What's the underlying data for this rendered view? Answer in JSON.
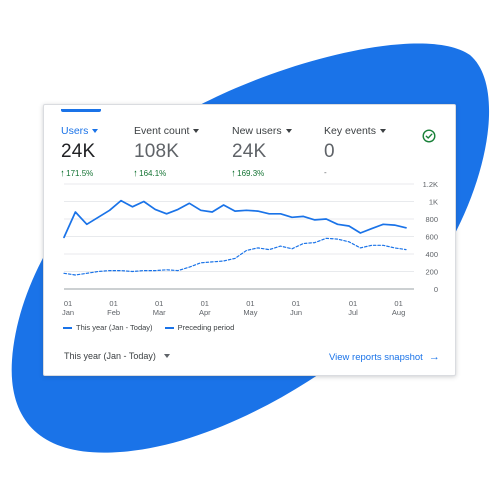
{
  "metrics": [
    {
      "label": "Users",
      "value": "24K",
      "change": "171.5%"
    },
    {
      "label": "Event count",
      "value": "108K",
      "change": "164.1%"
    },
    {
      "label": "New users",
      "value": "24K",
      "change": "169.3%"
    },
    {
      "label": "Key events",
      "value": "0",
      "change": "-"
    }
  ],
  "legend": {
    "current": "This year (Jan - Today)",
    "previous": "Preceding period"
  },
  "footer": {
    "date_range": "This year (Jan - Today)",
    "snapshot_link": "View reports snapshot"
  },
  "colors": {
    "accent": "#1a73e8",
    "positive": "#137333",
    "blob": "#1a73e8",
    "check": "#188038"
  },
  "icons": {
    "check": "check-circle-icon",
    "arrow": "arrow-right-icon"
  },
  "chart_data": {
    "type": "line",
    "ylim": [
      0,
      1200
    ],
    "y_ticks": [
      "0",
      "200",
      "400",
      "600",
      "800",
      "1K",
      "1.2K"
    ],
    "y_tick_values": [
      0,
      200,
      400,
      600,
      800,
      1000,
      1200
    ],
    "x_ticks": [
      {
        "day": "01",
        "month": "Jan",
        "index": 0
      },
      {
        "day": "01",
        "month": "Feb",
        "index": 4
      },
      {
        "day": "01",
        "month": "Mar",
        "index": 8
      },
      {
        "day": "01",
        "month": "Apr",
        "index": 12
      },
      {
        "day": "01",
        "month": "May",
        "index": 16
      },
      {
        "day": "01",
        "month": "Jun",
        "index": 20
      },
      {
        "day": "01",
        "month": "Jul",
        "index": 25
      },
      {
        "day": "01",
        "month": "Aug",
        "index": 29
      }
    ],
    "series": [
      {
        "name": "This year (Jan - Today)",
        "style": "solid",
        "values": [
          590,
          880,
          740,
          820,
          900,
          1010,
          940,
          1000,
          910,
          860,
          910,
          980,
          900,
          880,
          960,
          890,
          900,
          890,
          860,
          860,
          820,
          830,
          790,
          800,
          740,
          720,
          640,
          690,
          740,
          730,
          700
        ]
      },
      {
        "name": "Preceding period",
        "style": "dashed",
        "values": [
          180,
          160,
          180,
          200,
          210,
          210,
          200,
          210,
          210,
          220,
          210,
          250,
          300,
          310,
          320,
          350,
          440,
          470,
          450,
          490,
          460,
          520,
          530,
          580,
          570,
          540,
          470,
          500,
          500,
          470,
          450
        ]
      }
    ]
  }
}
